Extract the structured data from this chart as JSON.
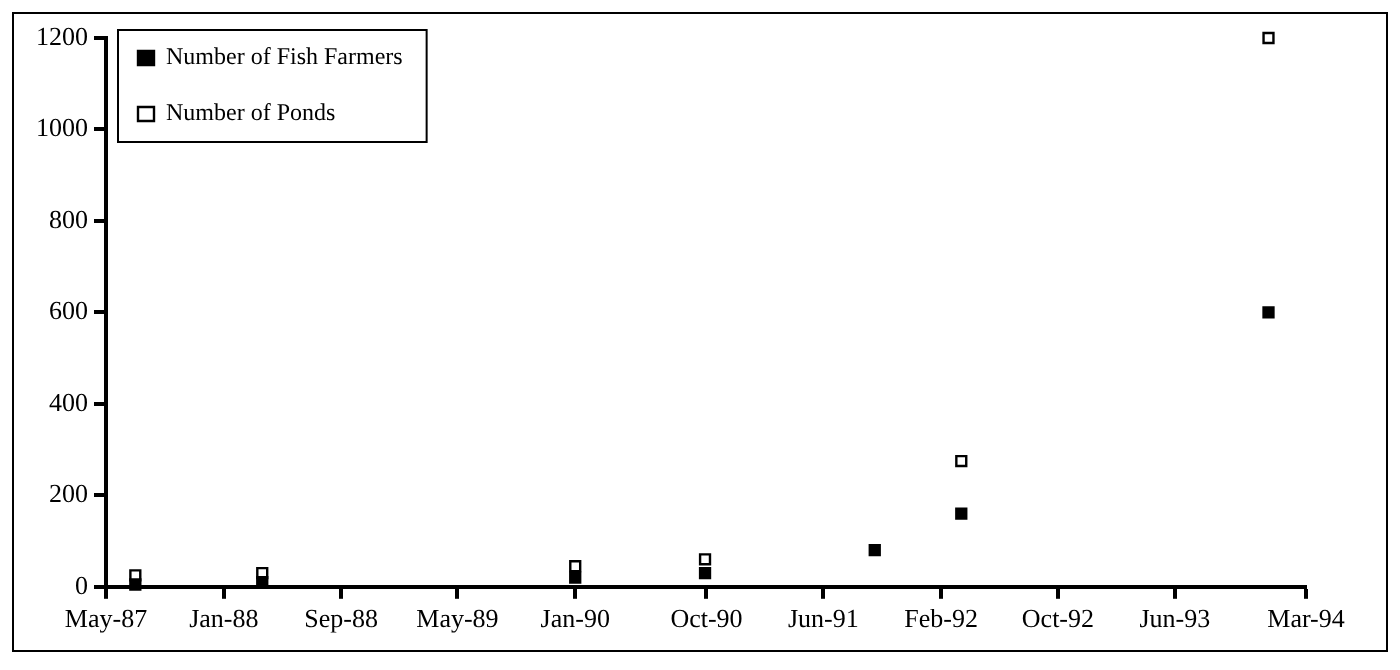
{
  "chart_data": {
    "type": "scatter",
    "marker": "square",
    "legend": "top left",
    "grid": false,
    "xlim": [
      "1987-05-01",
      "1994-03-01"
    ],
    "xticks": [
      {
        "value": "1987-05-01",
        "label": "May-87"
      },
      {
        "value": "1988-01-01",
        "label": "Jan-88"
      },
      {
        "value": "1988-09-01",
        "label": "Sep-88"
      },
      {
        "value": "1989-05-01",
        "label": "May-89"
      },
      {
        "value": "1990-01-01",
        "label": "Jan-90"
      },
      {
        "value": "1990-10-01",
        "label": "Oct-90"
      },
      {
        "value": "1991-06-01",
        "label": "Jun-91"
      },
      {
        "value": "1992-02-01",
        "label": "Feb-92"
      },
      {
        "value": "1992-10-01",
        "label": "Oct-92"
      },
      {
        "value": "1993-06-01",
        "label": "Jun-93"
      },
      {
        "value": "1994-03-01",
        "label": "Mar-94"
      }
    ],
    "ylim": [
      0,
      1200
    ],
    "yticks": [
      0,
      200,
      400,
      600,
      800,
      1000,
      1200
    ],
    "series": [
      {
        "name": "Number of Fish Farmers",
        "color": "#000000",
        "x": [
          "1987-07-01",
          "1988-03-21",
          "1990-01-01",
          "1990-09-28",
          "1991-09-16",
          "1992-03-14",
          "1993-12-13"
        ],
        "values": [
          5,
          10,
          20,
          30,
          80,
          160,
          600
        ]
      },
      {
        "name": "Number of Ponds",
        "color": "#000000",
        "x": [
          "1987-07-01",
          "1988-03-21",
          "1990-01-01",
          "1990-09-28",
          "1992-03-14",
          "1993-12-13"
        ],
        "values": [
          25,
          30,
          45,
          60,
          275,
          1200
        ]
      }
    ]
  }
}
